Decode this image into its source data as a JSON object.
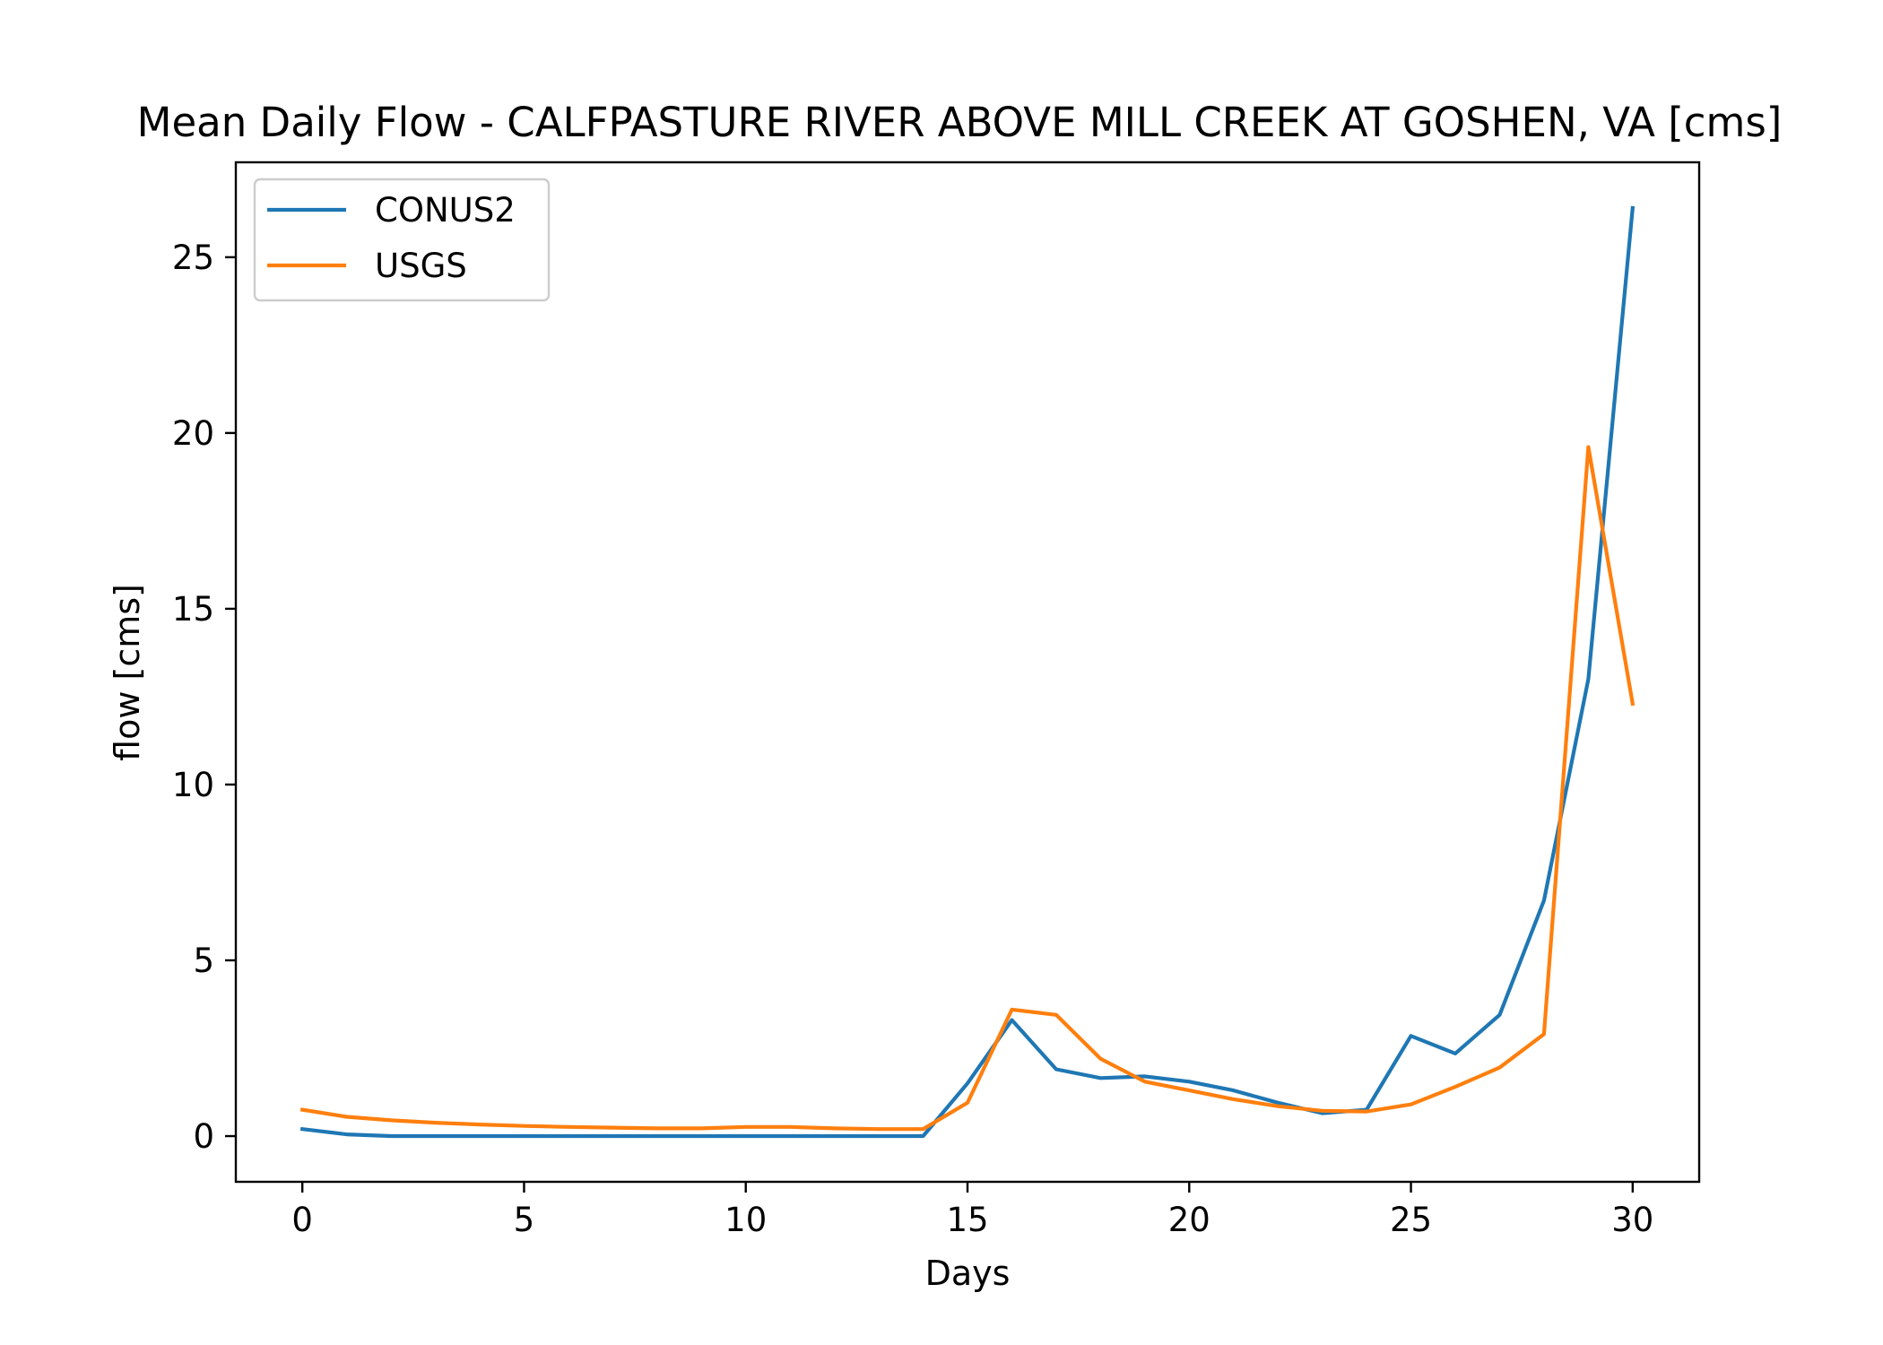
{
  "chart_data": {
    "type": "line",
    "title": "Mean Daily Flow - CALFPASTURE RIVER ABOVE MILL CREEK AT GOSHEN, VA [cms]",
    "xlabel": "Days",
    "ylabel": "flow [cms]",
    "xlim": [
      -1.5,
      31.5
    ],
    "ylim": [
      -1.3,
      27.7
    ],
    "xticks": [
      0,
      5,
      10,
      15,
      20,
      25,
      30
    ],
    "yticks": [
      0,
      5,
      10,
      15,
      20,
      25
    ],
    "grid": false,
    "legend_position": "top-left",
    "x": [
      0,
      1,
      2,
      3,
      4,
      5,
      6,
      7,
      8,
      9,
      10,
      11,
      12,
      13,
      14,
      15,
      16,
      17,
      18,
      19,
      20,
      21,
      22,
      23,
      24,
      25,
      26,
      27,
      28,
      29,
      30
    ],
    "series": [
      {
        "name": "CONUS2",
        "color": "#1f77b4",
        "values": [
          0.2,
          0.05,
          0.0,
          0.0,
          0.0,
          0.0,
          0.0,
          0.0,
          0.0,
          0.0,
          0.0,
          0.0,
          0.0,
          0.0,
          0.0,
          1.5,
          3.3,
          1.9,
          1.65,
          1.7,
          1.55,
          1.3,
          0.95,
          0.65,
          0.75,
          2.85,
          2.35,
          3.45,
          6.7,
          13.0,
          26.4
        ]
      },
      {
        "name": "USGS",
        "color": "#ff7f0e",
        "values": [
          0.75,
          0.55,
          0.45,
          0.38,
          0.33,
          0.29,
          0.26,
          0.24,
          0.22,
          0.22,
          0.26,
          0.26,
          0.22,
          0.2,
          0.2,
          0.95,
          3.6,
          3.45,
          2.2,
          1.55,
          1.3,
          1.05,
          0.85,
          0.72,
          0.7,
          0.9,
          1.4,
          1.95,
          2.9,
          19.6,
          12.3
        ]
      }
    ]
  }
}
